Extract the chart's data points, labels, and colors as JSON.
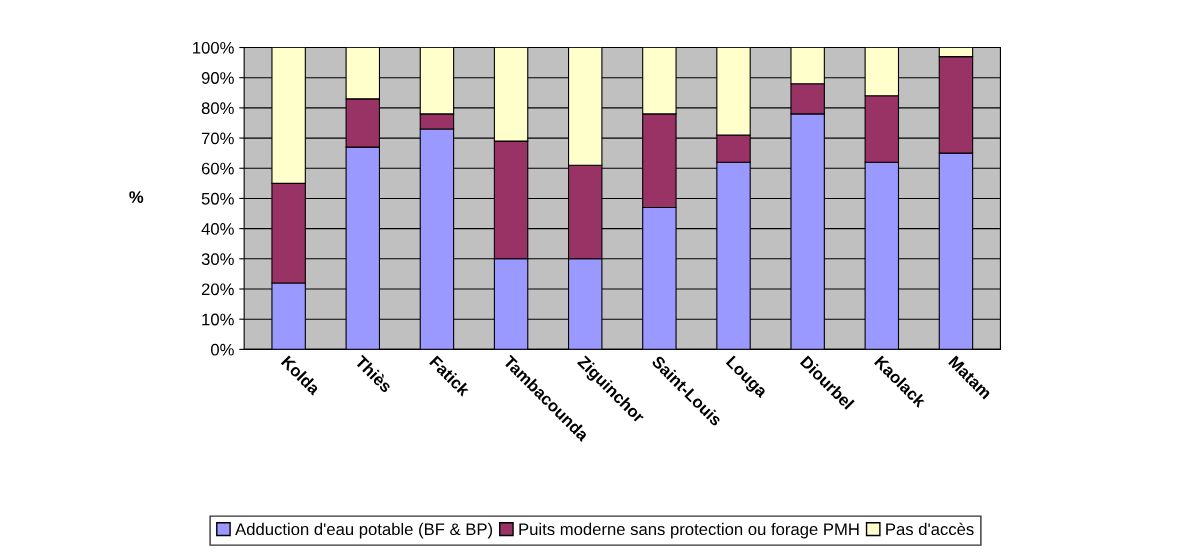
{
  "chart_data": {
    "type": "bar",
    "stacked": true,
    "ylabel": "%",
    "categories": [
      "Kolda",
      "Thiès",
      "Fatick",
      "Tambacounda",
      "Ziguinchor",
      "Saint-Louis",
      "Louga",
      "Diourbel",
      "Kaolack",
      "Matam"
    ],
    "series": [
      {
        "name": "Adduction d'eau potable (BF & BP)",
        "color": "#9999ff",
        "values": [
          22,
          67,
          73,
          30,
          30,
          47,
          62,
          78,
          62,
          65
        ]
      },
      {
        "name": "Puits moderne sans protection ou forage PMH",
        "color": "#993366",
        "values": [
          33,
          16,
          5,
          39,
          31,
          31,
          9,
          10,
          22,
          32
        ]
      },
      {
        "name": "Pas d'accès",
        "color": "#ffffcc",
        "values": [
          45,
          17,
          22,
          31,
          39,
          22,
          29,
          12,
          16,
          3
        ]
      }
    ],
    "ylim": [
      0,
      100
    ],
    "yticks": [
      {
        "value": 0,
        "label": "0%"
      },
      {
        "value": 10,
        "label": "10%"
      },
      {
        "value": 20,
        "label": "20%"
      },
      {
        "value": 30,
        "label": "30%"
      },
      {
        "value": 40,
        "label": "40%"
      },
      {
        "value": 50,
        "label": "50%"
      },
      {
        "value": 60,
        "label": "60%"
      },
      {
        "value": 70,
        "label": "70%"
      },
      {
        "value": 80,
        "label": "80%"
      },
      {
        "value": 90,
        "label": "90%"
      },
      {
        "value": 100,
        "label": "100%"
      }
    ],
    "grid": "y",
    "legend": "bottom"
  }
}
